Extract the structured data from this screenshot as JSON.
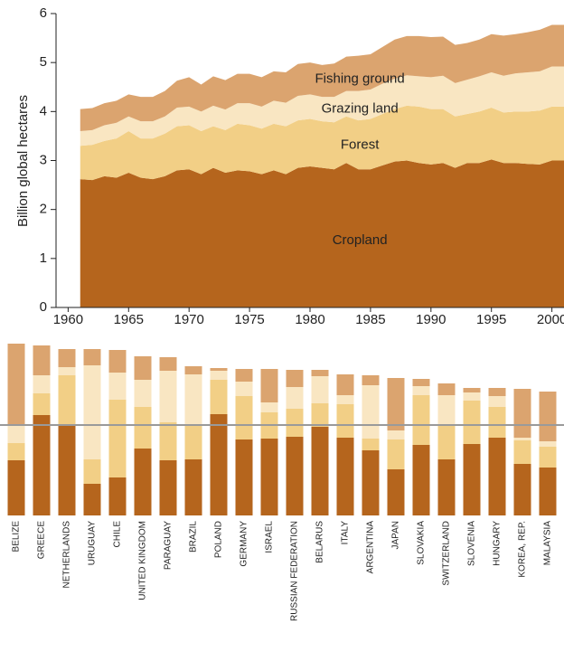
{
  "chart_data": [
    {
      "type": "area",
      "ylabel": "Billion global hectares",
      "x": [
        1961,
        1962,
        1963,
        1964,
        1965,
        1966,
        1967,
        1968,
        1969,
        1970,
        1971,
        1972,
        1973,
        1974,
        1975,
        1976,
        1977,
        1978,
        1979,
        1980,
        1981,
        1982,
        1983,
        1984,
        1985,
        1986,
        1987,
        1988,
        1989,
        1990,
        1991,
        1992,
        1993,
        1994,
        1995,
        1996,
        1997,
        1998,
        1999,
        2000,
        2001
      ],
      "xlim": [
        1959,
        2001
      ],
      "xticks": [
        1960,
        1965,
        1970,
        1975,
        1980,
        1985,
        1990,
        1995,
        2000
      ],
      "ylim": [
        0,
        6
      ],
      "yticks": [
        0,
        1,
        2,
        3,
        4,
        5,
        6
      ],
      "stacked": true,
      "series": [
        {
          "name": "Cropland",
          "color": "#b5651d",
          "values": [
            2.62,
            2.6,
            2.68,
            2.65,
            2.75,
            2.65,
            2.62,
            2.68,
            2.8,
            2.82,
            2.72,
            2.85,
            2.75,
            2.8,
            2.78,
            2.72,
            2.8,
            2.72,
            2.85,
            2.88,
            2.85,
            2.82,
            2.95,
            2.82,
            2.82,
            2.9,
            2.98,
            3.0,
            2.95,
            2.92,
            2.95,
            2.85,
            2.95,
            2.95,
            3.02,
            2.95,
            2.95,
            2.93,
            2.92,
            3.0,
            3.0
          ]
        },
        {
          "name": "Forest",
          "color": "#f2cf86",
          "values": [
            0.68,
            0.72,
            0.72,
            0.8,
            0.85,
            0.8,
            0.83,
            0.87,
            0.9,
            0.9,
            0.88,
            0.85,
            0.87,
            0.95,
            0.94,
            0.93,
            0.95,
            0.98,
            0.97,
            0.97,
            0.95,
            0.96,
            0.95,
            1.0,
            1.03,
            1.05,
            1.07,
            1.12,
            1.15,
            1.13,
            1.1,
            1.05,
            1.0,
            1.05,
            1.06,
            1.03,
            1.05,
            1.07,
            1.1,
            1.1,
            1.1
          ]
        },
        {
          "name": "Grazing land",
          "color": "#f9e6c2",
          "values": [
            0.3,
            0.3,
            0.32,
            0.32,
            0.3,
            0.35,
            0.35,
            0.35,
            0.38,
            0.38,
            0.4,
            0.42,
            0.42,
            0.42,
            0.45,
            0.45,
            0.47,
            0.48,
            0.5,
            0.5,
            0.5,
            0.52,
            0.52,
            0.6,
            0.6,
            0.62,
            0.62,
            0.62,
            0.62,
            0.65,
            0.68,
            0.68,
            0.7,
            0.72,
            0.72,
            0.75,
            0.78,
            0.8,
            0.8,
            0.82,
            0.82
          ]
        },
        {
          "name": "Fishing ground",
          "color": "#dba46f",
          "values": [
            0.45,
            0.45,
            0.45,
            0.45,
            0.45,
            0.5,
            0.5,
            0.52,
            0.55,
            0.6,
            0.55,
            0.6,
            0.6,
            0.6,
            0.6,
            0.6,
            0.6,
            0.62,
            0.65,
            0.65,
            0.65,
            0.68,
            0.7,
            0.72,
            0.72,
            0.75,
            0.8,
            0.8,
            0.82,
            0.82,
            0.8,
            0.78,
            0.75,
            0.75,
            0.78,
            0.82,
            0.8,
            0.82,
            0.85,
            0.85,
            0.85
          ]
        }
      ]
    },
    {
      "type": "bar",
      "stacked": true,
      "categories": [
        "BELIZE",
        "GREECE",
        "NETHERLANDS",
        "URUGUAY",
        "CHILE",
        "UNITED KINGDOM",
        "PARAGUAY",
        "BRAZIL",
        "POLAND",
        "GERMANY",
        "ISRAEL",
        "RUSSIAN FEDERATION",
        "BELARUS",
        "ITALY",
        "ARGENTINA",
        "JAPAN",
        "SLOVAKIA",
        "SWITZERLAND",
        "SLOVENIA",
        "HUNGARY",
        "KOREA, REP.",
        "MALAYSIA"
      ],
      "ylim": [
        0,
        19.5
      ],
      "reference_line": 10,
      "series": [
        {
          "color": "#b5651d",
          "values": [
            6.1,
            11.1,
            9.9,
            3.5,
            4.2,
            7.4,
            6.1,
            6.2,
            11.2,
            8.4,
            8.5,
            8.7,
            9.8,
            8.6,
            7.2,
            5.1,
            7.8,
            6.2,
            7.9,
            8.6,
            5.7,
            5.3
          ]
        },
        {
          "color": "#f2cf86",
          "values": [
            1.9,
            2.4,
            5.6,
            2.7,
            8.6,
            4.6,
            4.2,
            3.7,
            3.8,
            4.8,
            2.9,
            3.1,
            2.6,
            3.7,
            1.3,
            3.3,
            5.5,
            3.8,
            4.8,
            3.4,
            2.6,
            2.3
          ]
        },
        {
          "color": "#f9e6c2",
          "values": [
            2.0,
            2.0,
            0.9,
            10.4,
            3.0,
            3.0,
            5.7,
            5.7,
            1.0,
            1.6,
            1.1,
            2.4,
            3.0,
            1.0,
            5.9,
            1.0,
            1.0,
            3.3,
            0.9,
            1.2,
            0.3,
            0.6
          ]
        },
        {
          "color": "#dba46f",
          "values": [
            9.0,
            3.3,
            2.0,
            1.8,
            2.5,
            2.6,
            1.5,
            0.9,
            0.3,
            1.4,
            3.7,
            1.9,
            0.7,
            2.3,
            1.1,
            5.8,
            0.8,
            1.3,
            0.5,
            0.9,
            5.4,
            5.5
          ]
        }
      ]
    }
  ]
}
